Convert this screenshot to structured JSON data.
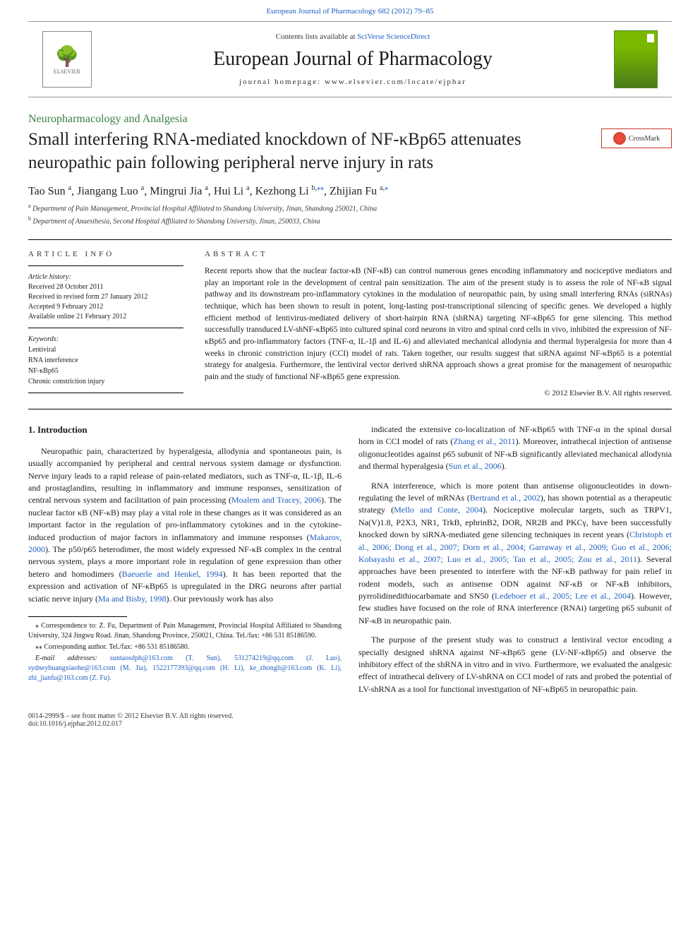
{
  "top_link": "European Journal of Pharmacology 682 (2012) 79–85",
  "header": {
    "contents_pre": "Contents lists available at ",
    "contents_link": "SciVerse ScienceDirect",
    "journal": "European Journal of Pharmacology",
    "homepage": "journal homepage: www.elsevier.com/locate/ejphar",
    "elsevier": "ELSEVIER"
  },
  "section": "Neuropharmacology and Analgesia",
  "title": "Small interfering RNA-mediated knockdown of NF-κBp65 attenuates neuropathic pain following peripheral nerve injury in rats",
  "crossmark": "CrossMark",
  "authors_html": "Tao Sun <sup>a</sup>, Jiangang Luo <sup>a</sup>, Mingrui Jia <sup>a</sup>, Hui Li <sup>a</sup>, Kezhong Li <sup>b,</sup><sup class='ast'>⁎⁎</sup>, Zhijian Fu <sup>a,</sup><sup class='ast'>⁎</sup>",
  "affiliations": {
    "a": "Department of Pain Management, Provincial Hospital Affiliated to Shandong University, Jinan, Shandong 250021, China",
    "b": "Department of Anaesthesia, Second Hospital Affiliated to Shandong University, Jinan, 250033, China"
  },
  "info": {
    "head": "ARTICLE INFO",
    "history_head": "Article history:",
    "history": "Received 28 October 2011\nReceived in revised form 27 January 2012\nAccepted 9 February 2012\nAvailable online 21 February 2012",
    "keywords_head": "Keywords:",
    "keywords": "Lentiviral\nRNA interference\nNF-κBp65\nChronic constriction injury"
  },
  "abstract": {
    "head": "ABSTRACT",
    "text": "Recent reports show that the nuclear factor-κB (NF-κB) can control numerous genes encoding inflammatory and nociceptive mediators and play an important role in the development of central pain sensitization. The aim of the present study is to assess the role of NF-κB signal pathway and its downstream pro-inflammatory cytokines in the modulation of neuropathic pain, by using small interfering RNAs (siRNAs) technique, which has been shown to result in potent, long-lasting post-transcriptional silencing of specific genes. We developed a highly efficient method of lentivirus-mediated delivery of short-hairpin RNA (shRNA) targeting NF-κBp65 for gene silencing. This method successfully transduced LV-shNF-κBp65 into cultured spinal cord neurons in vitro and spinal cord cells in vivo, inhibited the expression of NF-κBp65 and pro-inflammatory factors (TNF-α, IL-1β and IL-6) and alleviated mechanical allodynia and thermal hyperalgesia for more than 4 weeks in chronic constriction injury (CCI) model of rats. Taken together, our results suggest that siRNA against NF-κBp65 is a potential strategy for analgesia. Furthermore, the lentiviral vector derived shRNA approach shows a great promise for the management of neuropathic pain and the study of functional NF-κBp65 gene expression.",
    "copyright": "© 2012 Elsevier B.V. All rights reserved."
  },
  "body": {
    "intro_head": "1. Introduction",
    "left": [
      "Neuropathic pain, characterized by hyperalgesia, allodynia and spontaneous pain, is usually accompanied by peripheral and central nervous system damage or dysfunction. Nerve injury leads to a rapid release of pain-related mediators, such as TNF-α, IL-1β, IL-6 and prostaglandins, resulting in inflammatory and immune responses, sensitization of central nervous system and facilitation of pain processing (<span class='cite'>Moalem and Tracey, 2006</span>). The nuclear factor κB (NF-κB) may play a vital role in these changes as it was considered as an important factor in the regulation of pro-inflammatory cytokines and in the cytokine-induced production of major factors in inflammatory and immune responses (<span class='cite'>Makarov, 2000</span>). The p50/p65 heterodimer, the most widely expressed NF-κB complex in the central nervous system, plays a more important role in regulation of gene expression than other hetero and homodimers (<span class='cite'>Baeuerle and Henkel, 1994</span>). It has been reported that the expression and activation of NF-κBp65 is upregulated in the DRG neurons after partial sciatic nerve injury (<span class='cite'>Ma and Bisby, 1998</span>). Our previously work has also"
    ],
    "right": [
      "indicated the extensive co-localization of NF-κBp65 with TNF-α in the spinal dorsal horn in CCI model of rats (<span class='cite'>Zhang et al., 2011</span>). Moreover, intrathecal injection of antisense oligonucleotides against p65 subunit of NF-κB significantly alleviated mechanical allodynia and thermal hyperalgesia (<span class='cite'>Sun et al., 2006</span>).",
      "RNA interference, which is more potent than antisense oligonucleotides in down-regulating the level of mRNAs (<span class='cite'>Bertrand et al., 2002</span>), has shown potential as a therapeutic strategy (<span class='cite'>Mello and Conte, 2004</span>). Nociceptive molecular targets, such as TRPV1, Na(V)1.8, P2X3, NR1, TrkB, ephrinB2, DOR, NR2B and PKCγ, have been successfully knocked down by siRNA-mediated gene silencing techniques in recent years (<span class='cite'>Christoph et al., 2006; Dong et al., 2007; Dorn et al., 2004; Garraway et al., 2009; Guo et al., 2006; Kobayashi et al., 2007; Luo et al., 2005; Tan et al., 2005; Zou et al., 2011</span>). Several approaches have been presented to interfere with the NF-κB pathway for pain relief in rodent models, such as antisense ODN against NF-κB or NF-κB inhibitors, pyrrolidinedithiocarbamate and SN50 (<span class='cite'>Ledeboer et al., 2005; Lee et al., 2004</span>). However, few studies have focused on the role of RNA interference (RNAi) targeting p65 subunit of NF-κB in neuropathic pain.",
      "The purpose of the present study was to construct a lentiviral vector encoding a specially designed shRNA against NF-κBp65 gene (LV-NF-κBp65) and observe the inhibitory effect of the shRNA in vitro and in vivo. Furthermore, we evaluated the analgesic effect of intrathecal delivery of LV-shRNA on CCI model of rats and probed the potential of LV-shRNA as a tool for functional investigation of NF-κBp65 in neuropathic pain."
    ]
  },
  "footnotes": {
    "corr1": "⁎ Correspondence to: Z. Fu, Department of Pain Management, Provincial Hospital Affiliated to Shandong University, 324 Jingwu Road. Jinan, Shandong Province, 250021, China. Tel./fax: +86 531 85186590.",
    "corr2": "⁎⁎ Corresponding author. Tel./fax: +86 531 85186580.",
    "emails_label": "E-mail addresses: ",
    "emails": "suntaosdph@163.com (T. Sun), 531274219@qq.com (J. Luo), sydneyhuangxiaohe@163.com (M. Jia), 1522177393@qq.com (H. Li), ke_zhongli@163.com (K. Li), zhi_jianfu@163.com (Z. Fu)."
  },
  "bottom": {
    "issn": "0014-2999/$ – see front matter © 2012 Elsevier B.V. All rights reserved.",
    "doi": "doi:10.1016/j.ejphar.2012.02.017"
  }
}
